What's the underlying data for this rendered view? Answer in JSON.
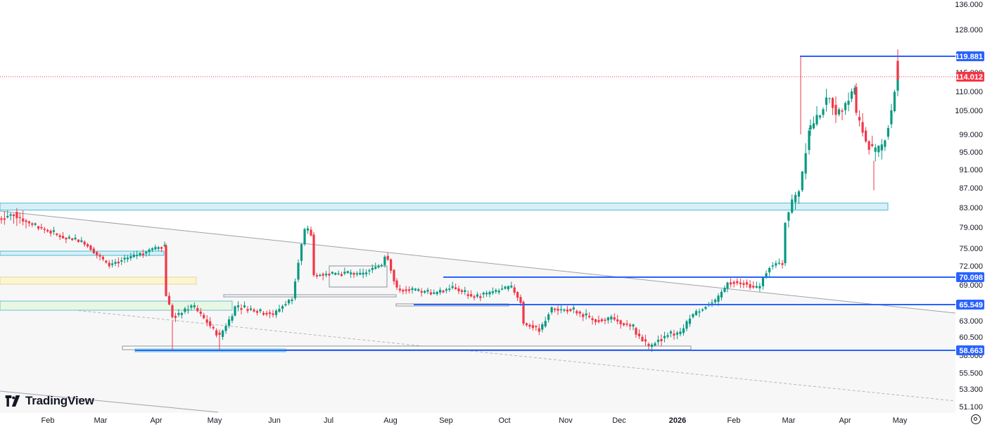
{
  "chart_data": {
    "type": "candlestick",
    "y_ticks": [
      136.0,
      128.0,
      119.881,
      115.0,
      114.012,
      110.0,
      105.0,
      99.0,
      95.0,
      91.0,
      87.0,
      83.0,
      79.0,
      75.0,
      72.0,
      70.098,
      69.0,
      65.549,
      63.0,
      60.5,
      58.663,
      58.0,
      55.5,
      53.3,
      51.1
    ],
    "x_ticks": [
      "Feb",
      "Mar",
      "Apr",
      "May",
      "Jun",
      "Jul",
      "Aug",
      "Sep",
      "Oct",
      "Nov",
      "Dec",
      "2026",
      "Feb",
      "Mar",
      "Apr",
      "May"
    ],
    "price_labels": [
      {
        "value": "119.881",
        "color": "#2962ff"
      },
      {
        "value": "114.012",
        "color": "#f23645"
      },
      {
        "value": "70.098",
        "color": "#2962ff"
      },
      {
        "value": "65.549",
        "color": "#2962ff"
      },
      {
        "value": "58.663",
        "color": "#2962ff"
      }
    ],
    "current_price": 114.012,
    "horizontal_levels": [
      119.881,
      70.098,
      65.549,
      58.663
    ],
    "colors": {
      "up": "#089981",
      "down": "#f23645",
      "level": "#2962ff",
      "zone_blue": "#d7f0f7",
      "zone_yellow": "#fdf5d1",
      "zone_green": "#e7f7e3"
    },
    "watermark": "TradingView"
  }
}
